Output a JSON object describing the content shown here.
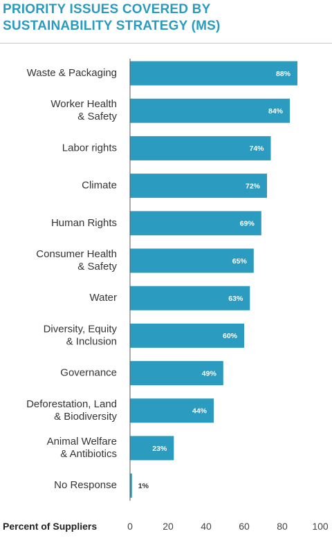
{
  "chart_data": {
    "type": "bar",
    "orientation": "horizontal",
    "title_lines": [
      "PRIORITY ISSUES COVERED BY",
      "SUSTAINABILITY STRATEGY (MS)"
    ],
    "xlabel": "Percent of Suppliers",
    "ylabel": "",
    "xlim": [
      0,
      100
    ],
    "xticks": [
      0,
      20,
      40,
      60,
      80,
      100
    ],
    "grid": false,
    "legend": "none",
    "bar_color": "#2b9bbf",
    "categories": [
      [
        "Waste & Packaging"
      ],
      [
        "Worker Health",
        "& Safety"
      ],
      [
        "Labor rights"
      ],
      [
        "Climate"
      ],
      [
        "Human Rights"
      ],
      [
        "Consumer Health",
        "& Safety"
      ],
      [
        "Water"
      ],
      [
        "Diversity, Equity",
        "& Inclusion"
      ],
      [
        "Governance"
      ],
      [
        "Deforestation, Land",
        "& Biodiversity"
      ],
      [
        "Animal Welfare",
        "& Antibiotics"
      ],
      [
        "No Response"
      ]
    ],
    "values": [
      88,
      84,
      74,
      72,
      69,
      65,
      63,
      60,
      49,
      44,
      23,
      1
    ],
    "value_labels": [
      "88%",
      "84%",
      "74%",
      "72%",
      "69%",
      "65%",
      "63%",
      "60%",
      "49%",
      "44%",
      "23%",
      "1%"
    ]
  }
}
